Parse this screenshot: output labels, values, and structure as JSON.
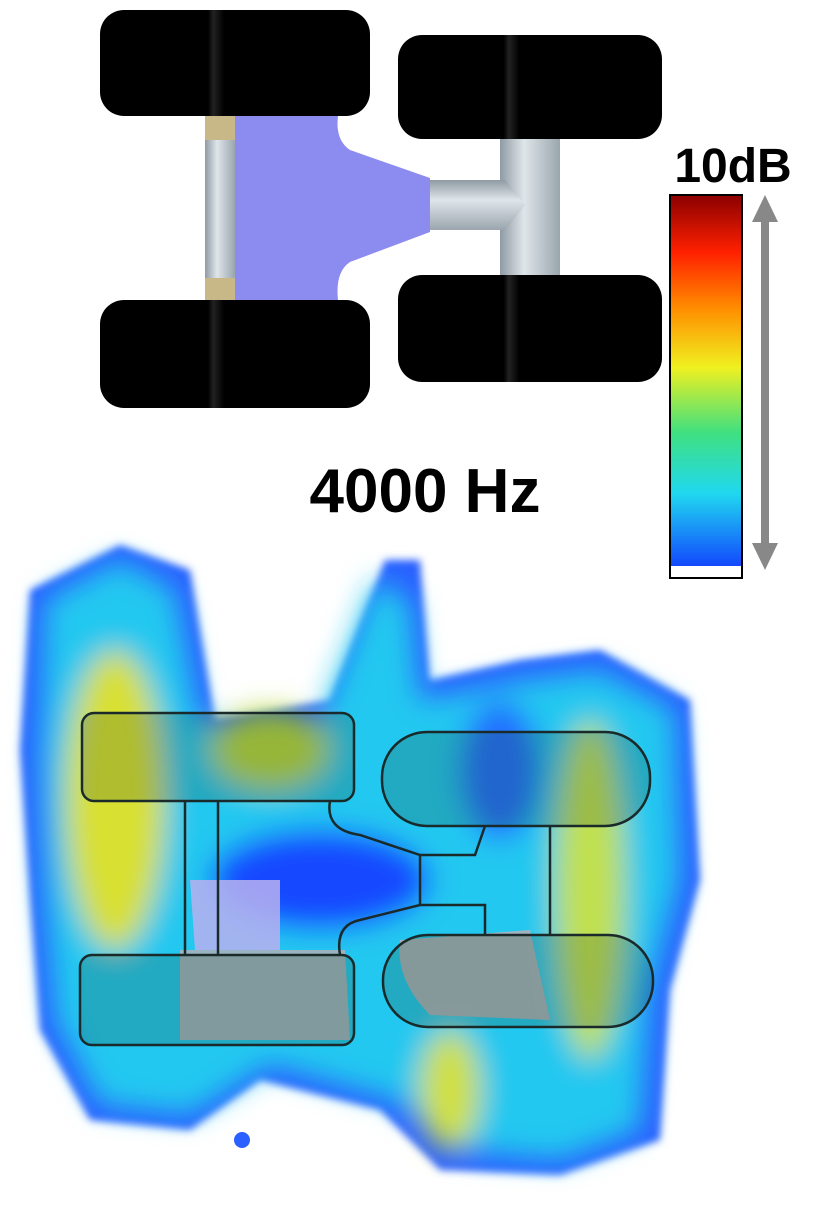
{
  "colorbar_label": "10dB",
  "frequency_label": "4000 Hz"
}
